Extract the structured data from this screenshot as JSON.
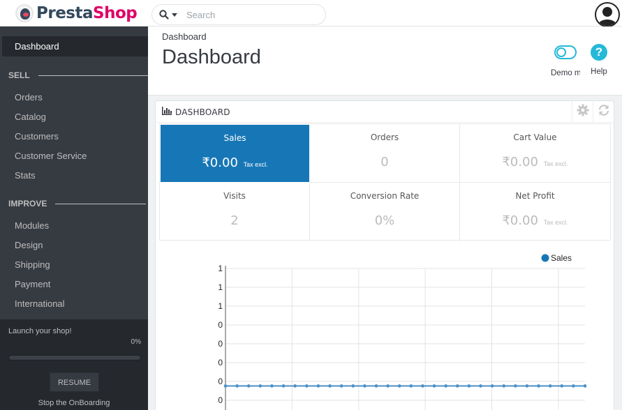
{
  "header": {
    "logo_part1": "Presta",
    "logo_part2": "Shop",
    "search_placeholder": "Search",
    "colors": {
      "brand_pink": "#df0067",
      "brand_dark": "#34495e",
      "accent": "#25b9d7"
    }
  },
  "sidebar": {
    "active_item": "Dashboard",
    "sections": [
      {
        "title": "SELL",
        "items": [
          "Orders",
          "Catalog",
          "Customers",
          "Customer Service",
          "Stats"
        ]
      },
      {
        "title": "IMPROVE",
        "items": [
          "Modules",
          "Design",
          "Shipping",
          "Payment",
          "International"
        ]
      }
    ],
    "onboarding": {
      "title": "Launch your shop!",
      "progress_label": "0%",
      "progress": 0,
      "resume_label": "RESUME",
      "stop_label": "Stop the OnBoarding"
    }
  },
  "page": {
    "breadcrumb": "Dashboard",
    "title": "Dashboard",
    "toolbar": {
      "demo_label": "Demo m",
      "help_label": "Help",
      "help_glyph": "?"
    }
  },
  "panel": {
    "title": "DASHBOARD",
    "kpis": [
      {
        "label": "Sales",
        "value": "₹0.00",
        "suffix": "Tax excl.",
        "active": true
      },
      {
        "label": "Orders",
        "value": "0",
        "suffix": ""
      },
      {
        "label": "Cart Value",
        "value": "₹0.00",
        "suffix": "Tax excl."
      },
      {
        "label": "Visits",
        "value": "2",
        "suffix": ""
      },
      {
        "label": "Conversion Rate",
        "value": "0%",
        "suffix": ""
      },
      {
        "label": "Net Profit",
        "value": "₹0.00",
        "suffix": "Tax excl."
      }
    ]
  },
  "chart_data": {
    "type": "line",
    "legend_position": "top-right",
    "y_tick_labels": [
      "1",
      "1",
      "1",
      "0",
      "0",
      "0",
      "0",
      "0"
    ],
    "series": [
      {
        "name": "Sales",
        "color": "#1777b6",
        "values": [
          0,
          0,
          0,
          0,
          0,
          0,
          0,
          0,
          0,
          0,
          0,
          0,
          0,
          0,
          0,
          0,
          0,
          0,
          0,
          0,
          0,
          0,
          0,
          0,
          0,
          0,
          0,
          0,
          0,
          0,
          0,
          0
        ]
      }
    ],
    "ylim": [
      -0.3,
      1
    ],
    "grid": true
  }
}
